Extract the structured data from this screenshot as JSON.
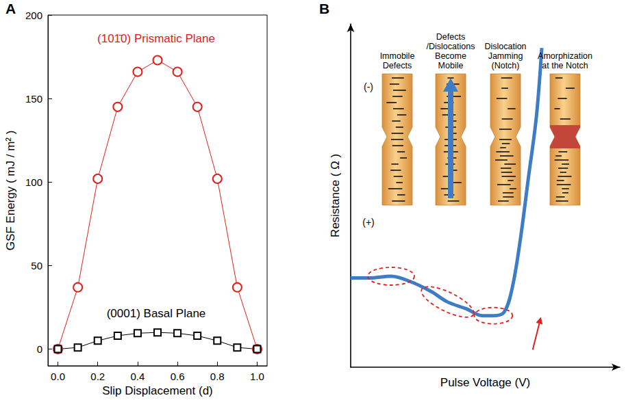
{
  "chart_data": [
    {
      "type": "line",
      "panel_label": "A",
      "x_label": "Slip Displacement (d)",
      "y_label": "GSF Energy ( mJ / m² )",
      "x": [
        0,
        0.1,
        0.2,
        0.3,
        0.4,
        0.5,
        0.6,
        0.7,
        0.8,
        0.9,
        1.0
      ],
      "series": [
        {
          "name": "(101̄0) Prismatic Plane",
          "color": "#e0201b",
          "marker": "circle",
          "values": [
            0,
            37,
            102,
            145,
            166,
            173,
            166,
            145,
            102,
            37,
            0
          ]
        },
        {
          "name": "(0001) Basal Plane",
          "color": "#000000",
          "marker": "square",
          "values": [
            0,
            1,
            5,
            8,
            9.5,
            10,
            9.5,
            8,
            5,
            1,
            0
          ]
        }
      ],
      "xlim": [
        -0.05,
        1.05
      ],
      "xticks": [
        {
          "value": 0,
          "label": "0.0"
        },
        {
          "value": 0.2,
          "label": "0.2"
        },
        {
          "value": 0.4,
          "label": "0.4"
        },
        {
          "value": 0.6,
          "label": "0.6"
        },
        {
          "value": 0.8,
          "label": "0.8"
        },
        {
          "value": 1.0,
          "label": "1.0"
        }
      ],
      "ylim": [
        -10,
        200
      ],
      "yticks": [
        0,
        50,
        100,
        150,
        200
      ],
      "grid": false
    },
    {
      "type": "line",
      "panel_label": "B",
      "x_label": "Pulse Voltage (V)",
      "y_label": "Resistance ( Ω )",
      "x": [
        0,
        7,
        15,
        22,
        30,
        36,
        43,
        49,
        53,
        57,
        60,
        63,
        66,
        69,
        71
      ],
      "series": [
        {
          "color": "#3e7dc4",
          "values": [
            26,
            26,
            26.5,
            25,
            22,
            19,
            17,
            15,
            15,
            16,
            23,
            37,
            55,
            73,
            93
          ]
        }
      ],
      "xlim": [
        0,
        100
      ],
      "ylim": [
        0,
        100
      ],
      "tick_labels": false,
      "grid": false,
      "stages": [
        "Immobile Defects",
        "Defects /Dislocations Become Mobile",
        "Dislocation Jamming (Notch)",
        "Amorphization at the Notch"
      ],
      "polarity": [
        "(-)",
        "(+)"
      ]
    }
  ]
}
